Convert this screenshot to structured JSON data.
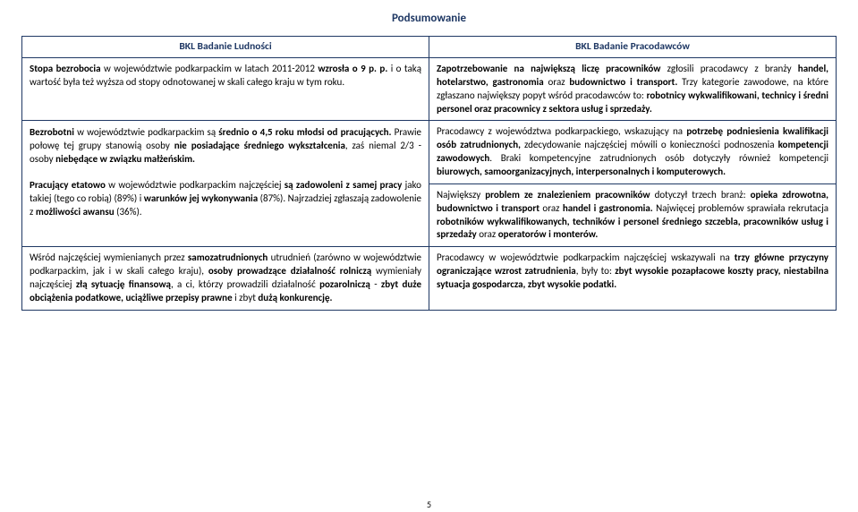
{
  "title": "Podsumowanie",
  "header_left": "BKL Badanie Ludności",
  "header_right": "BKL Badanie Pracodawców",
  "row1": {
    "left_html": "<b>Stopa bezrobocia</b> w województwie podkarpackim w latach 2011-2012 <b>wzrosła o 9 p. p.</b> i o taką wartość była też wyższa od stopy odnotowanej w skali całego kraju w tym roku.",
    "right_html": "<b>Zapotrzebowanie na największą liczę pracowników</b> zgłosili pracodawcy z branży <b>handel, hotelarstwo, gastronomia</b> oraz <b>budownictwo i transport.</b> Trzy kategorie zawodowe, na które zgłaszano największy popyt wśród pracodawców to: <b>robotnicy wykwalifikowani, technicy i średni personel oraz pracownicy z sektora usług i sprzedaży.</b>"
  },
  "row2": {
    "left_html": "<b>Bezrobotni</b> w województwie podkarpackim są <b>średnio o 4,5 roku młodsi od pracujących.</b> Prawie połowę tej grupy stanowią osoby <b>nie posiadające średniego wykształcenia</b>, zaś niemal 2/3 - osoby <b>niebędące w związku małżeńskim.</b>",
    "right_html": "Pracodawcy z województwa podkarpackiego, wskazujący na <b>potrzebę podniesienia kwalifikacji osób zatrudnionych,</b> zdecydowanie najczęściej mówili o konieczności podnoszenia <b>kompetencji zawodowych</b>. Braki kompetencyjne zatrudnionych osób dotyczyły również kompetencji <b>biurowych, samoorganizacyjnych, interpersonalnych i komputerowych.</b>"
  },
  "row3": {
    "left_html": "<b>Pracujący etatowo</b> w województwie podkarpackim najczęściej <b>są zadowoleni z samej pracy</b> jako takiej (tego co robią) (89%) i <b>warunków jej wykonywania</b> (87%). Najrzadziej zgłaszają zadowolenie z <b>możliwości awansu</b> (36%).",
    "right_html": "Największy <b>problem ze znalezieniem pracowników</b> dotyczył trzech branż: <b>opieka zdrowotna, budownictwo i transport</b> oraz <b>handel i gastronomia.</b> Najwięcej problemów sprawiała rekrutacja <b>robotników wykwalifikowanych, techników i personel średniego szczebla, pracowników usług i sprzedaży</b> oraz <b>operatorów i monterów.</b>"
  },
  "row4": {
    "left_html": "Wśród najczęściej wymienianych przez <b>samozatrudnionych</b> utrudnień (zarówno w województwie podkarpackim, jak i w skali całego kraju), <b>osoby prowadzące działalność rolniczą</b> wymieniały najczęściej <b>złą sytuację finansową</b>, a ci, którzy prowadzili działalność <b>pozarolniczą</b> - <b>zbyt duże obciążenia podatkowe, uciążliwe przepisy prawne</b> i zbyt <b>dużą konkurencję.</b>",
    "right_html": "Pracodawcy w województwie podkarpackim najczęściej wskazywali na <b>trzy główne przyczyny ograniczające wzrost zatrudnienia</b>, były to: <b>zbyt wysokie pozapłacowe koszty pracy, niestabilna sytuacja gospodarcza, zbyt wysokie podatki.</b>"
  },
  "page_number": "5",
  "colors": {
    "heading": "#1f3864",
    "border": "#1f3864",
    "background": "#ffffff",
    "text": "#000000"
  }
}
